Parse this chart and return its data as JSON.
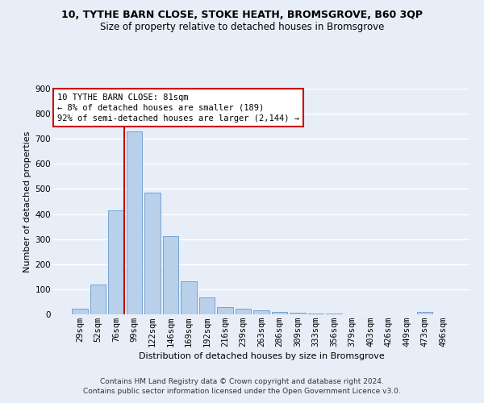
{
  "title1": "10, TYTHE BARN CLOSE, STOKE HEATH, BROMSGROVE, B60 3QP",
  "title2": "Size of property relative to detached houses in Bromsgrove",
  "xlabel": "Distribution of detached houses by size in Bromsgrove",
  "ylabel": "Number of detached properties",
  "categories": [
    "29sqm",
    "52sqm",
    "76sqm",
    "99sqm",
    "122sqm",
    "146sqm",
    "169sqm",
    "192sqm",
    "216sqm",
    "239sqm",
    "263sqm",
    "286sqm",
    "309sqm",
    "333sqm",
    "356sqm",
    "379sqm",
    "403sqm",
    "426sqm",
    "449sqm",
    "473sqm",
    "496sqm"
  ],
  "values": [
    22,
    120,
    415,
    730,
    485,
    312,
    133,
    67,
    28,
    22,
    15,
    10,
    5,
    2,
    2,
    0,
    0,
    0,
    0,
    10,
    0
  ],
  "bar_color": "#b8d0ea",
  "bar_edge_color": "#6699cc",
  "vline_color": "#cc0000",
  "vline_pos": 2.43,
  "annotation_text": "10 TYTHE BARN CLOSE: 81sqm\n← 8% of detached houses are smaller (189)\n92% of semi-detached houses are larger (2,144) →",
  "ylim": [
    0,
    900
  ],
  "yticks": [
    0,
    100,
    200,
    300,
    400,
    500,
    600,
    700,
    800,
    900
  ],
  "footer_text": "Contains HM Land Registry data © Crown copyright and database right 2024.\nContains public sector information licensed under the Open Government Licence v3.0.",
  "bg_color": "#e8eef8",
  "grid_color": "#ffffff",
  "title1_fontsize": 9,
  "title2_fontsize": 8.5,
  "xlabel_fontsize": 8,
  "ylabel_fontsize": 8,
  "tick_fontsize": 7.5,
  "annot_fontsize": 7.5,
  "footer_fontsize": 6.5
}
